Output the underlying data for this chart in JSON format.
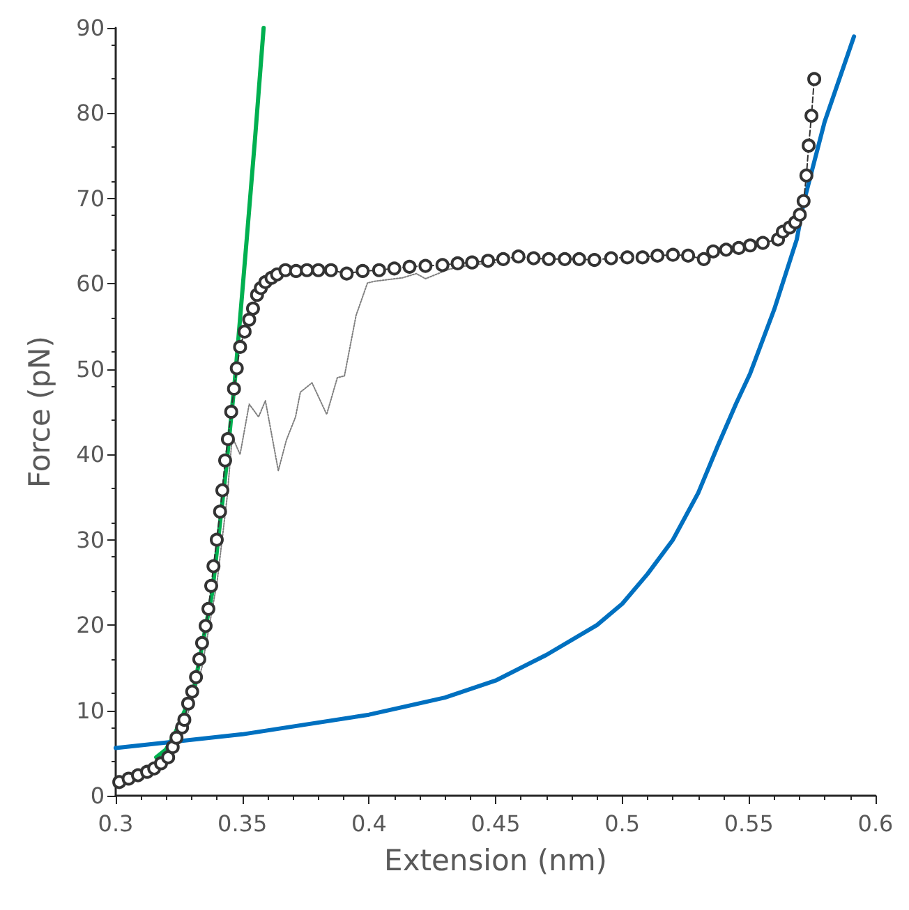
{
  "chart_data": {
    "type": "line",
    "xlabel": "Extension (nm)",
    "ylabel": "Force (pN)",
    "xlim": [
      0.3,
      0.6
    ],
    "xticks": [
      0.3,
      0.35,
      0.4,
      0.45,
      0.5,
      0.55,
      0.6
    ],
    "ylim": [
      0,
      90
    ],
    "yticks": [
      0,
      10,
      20,
      30,
      40,
      50,
      60,
      70,
      80,
      90
    ],
    "grid": false,
    "series": [
      {
        "color": "#7f7f7f",
        "marker": "none",
        "line_style": "dotted",
        "x": [
          0.301,
          0.315,
          0.322,
          0.326,
          0.33,
          0.334,
          0.337,
          0.34,
          0.342,
          0.344,
          0.346,
          0.3491,
          0.3527,
          0.3564,
          0.3591,
          0.3642,
          0.3674,
          0.371,
          0.3729,
          0.3775,
          0.3833,
          0.3875,
          0.3903,
          0.3949,
          0.3994,
          0.4022,
          0.4132,
          0.4187,
          0.4223,
          0.4315,
          0.44,
          0.45
        ],
        "values": [
          1.5,
          3.0,
          5.0,
          7.5,
          11,
          15,
          20,
          25,
          30,
          35,
          42.1,
          40.0,
          45.9,
          44.4,
          46.3,
          38.1,
          41.7,
          44.4,
          47.3,
          48.4,
          44.7,
          49.0,
          49.2,
          56.3,
          60.1,
          60.3,
          60.7,
          61.2,
          60.6,
          61.7,
          62.2,
          62.5
        ]
      },
      {
        "color": "#00b050",
        "marker": "none",
        "line_style": "solid",
        "x": [
          0.316,
          0.3198,
          0.3234,
          0.3308,
          0.3381,
          0.3436,
          0.3472,
          0.3518,
          0.355,
          0.3584
        ],
        "values": [
          4.5,
          5.4,
          7.3,
          12.4,
          23.8,
          38.4,
          49.2,
          65.5,
          77,
          90
        ]
      },
      {
        "color": "#0070c0",
        "marker": "none",
        "line_style": "solid",
        "x": [
          0.3,
          0.35,
          0.4,
          0.43,
          0.45,
          0.47,
          0.49,
          0.5,
          0.51,
          0.52,
          0.53,
          0.5377,
          0.545,
          0.5505,
          0.56,
          0.5689,
          0.5716,
          0.5799,
          0.5915
        ],
        "values": [
          5.6,
          7.2,
          9.5,
          11.5,
          13.5,
          16.5,
          20,
          22.5,
          26,
          30,
          35.5,
          41,
          46,
          49.5,
          57,
          65.2,
          69.5,
          79,
          89
        ]
      },
      {
        "color": "#333333",
        "marker": "circle",
        "line_style": "dashed",
        "x": [
          0.3014,
          0.3051,
          0.3088,
          0.3124,
          0.3152,
          0.3179,
          0.3207,
          0.3225,
          0.324,
          0.3262,
          0.3271,
          0.3286,
          0.3302,
          0.3317,
          0.333,
          0.3341,
          0.3355,
          0.3366,
          0.3377,
          0.3386,
          0.3399,
          0.3412,
          0.3421,
          0.3432,
          0.3443,
          0.3456,
          0.3467,
          0.3478,
          0.3491,
          0.3509,
          0.3527,
          0.3542,
          0.3558,
          0.3573,
          0.3591,
          0.3615,
          0.3637,
          0.367,
          0.3712,
          0.3755,
          0.38,
          0.385,
          0.3912,
          0.3975,
          0.404,
          0.41,
          0.416,
          0.4223,
          0.429,
          0.435,
          0.4407,
          0.447,
          0.453,
          0.459,
          0.465,
          0.471,
          0.4773,
          0.483,
          0.489,
          0.4956,
          0.502,
          0.508,
          0.5139,
          0.52,
          0.526,
          0.5322,
          0.5359,
          0.541,
          0.546,
          0.5505,
          0.5555,
          0.5615,
          0.5634,
          0.5661,
          0.5683,
          0.5701,
          0.5716,
          0.5727,
          0.5736,
          0.5747,
          0.5758
        ],
        "values": [
          1.6,
          2.0,
          2.4,
          2.8,
          3.2,
          3.8,
          4.5,
          5.7,
          6.8,
          8.0,
          8.9,
          10.8,
          12.2,
          13.9,
          16.0,
          17.9,
          19.9,
          21.9,
          24.6,
          26.9,
          30.0,
          33.3,
          35.8,
          39.3,
          41.8,
          45.0,
          47.7,
          50.1,
          52.6,
          54.4,
          55.8,
          57.1,
          58.7,
          59.5,
          60.2,
          60.7,
          61.1,
          61.6,
          61.5,
          61.6,
          61.6,
          61.6,
          61.2,
          61.5,
          61.6,
          61.8,
          62.0,
          62.1,
          62.2,
          62.4,
          62.5,
          62.7,
          62.9,
          63.2,
          63.0,
          62.9,
          62.9,
          62.9,
          62.8,
          63.0,
          63.1,
          63.1,
          63.3,
          63.4,
          63.3,
          62.9,
          63.8,
          64.0,
          64.2,
          64.5,
          64.8,
          65.2,
          66.1,
          66.6,
          67.2,
          68.1,
          69.7,
          72.7,
          76.2,
          79.7,
          84.0
        ]
      }
    ]
  }
}
